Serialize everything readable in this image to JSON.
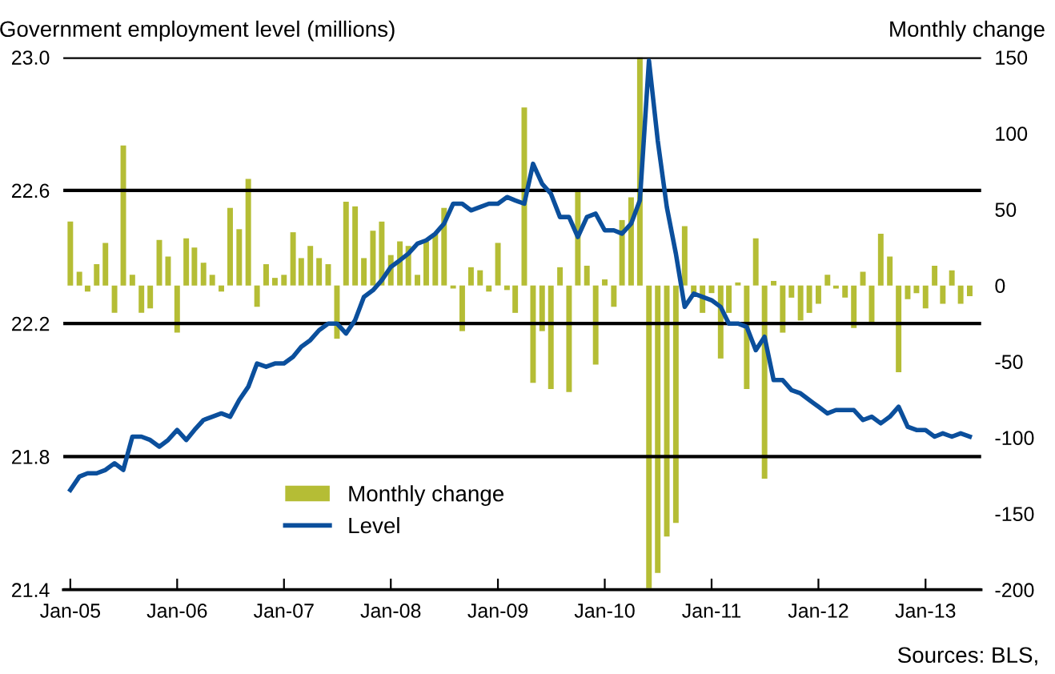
{
  "chart_data": {
    "type": "line",
    "ylabel": "Government employment level (millions)",
    "y2label": "Monthly change",
    "annotations": [
      "Sources: BLS,"
    ],
    "x": [
      "2005-01",
      "2005-02",
      "2005-03",
      "2005-04",
      "2005-05",
      "2005-06",
      "2005-07",
      "2005-08",
      "2005-09",
      "2005-10",
      "2005-11",
      "2005-12",
      "2006-01",
      "2006-02",
      "2006-03",
      "2006-04",
      "2006-05",
      "2006-06",
      "2006-07",
      "2006-08",
      "2006-09",
      "2006-10",
      "2006-11",
      "2006-12",
      "2007-01",
      "2007-02",
      "2007-03",
      "2007-04",
      "2007-05",
      "2007-06",
      "2007-07",
      "2007-08",
      "2007-09",
      "2007-10",
      "2007-11",
      "2007-12",
      "2008-01",
      "2008-02",
      "2008-03",
      "2008-04",
      "2008-05",
      "2008-06",
      "2008-07",
      "2008-08",
      "2008-09",
      "2008-10",
      "2008-11",
      "2008-12",
      "2009-01",
      "2009-02",
      "2009-03",
      "2009-04",
      "2009-05",
      "2009-06",
      "2009-07",
      "2009-08",
      "2009-09",
      "2009-10",
      "2009-11",
      "2009-12",
      "2010-01",
      "2010-02",
      "2010-03",
      "2010-04",
      "2010-05",
      "2010-06",
      "2010-07",
      "2010-08",
      "2010-09",
      "2010-10",
      "2010-11",
      "2010-12",
      "2011-01",
      "2011-02",
      "2011-03",
      "2011-04",
      "2011-05",
      "2011-06",
      "2011-07",
      "2011-08",
      "2011-09",
      "2011-10",
      "2011-11",
      "2011-12",
      "2012-01",
      "2012-02",
      "2012-03",
      "2012-04",
      "2012-05",
      "2012-06",
      "2012-07",
      "2012-08",
      "2012-09",
      "2012-10",
      "2012-11",
      "2012-12",
      "2013-01",
      "2013-02",
      "2013-03",
      "2013-04",
      "2013-05",
      "2013-06"
    ],
    "series": [
      {
        "name": "Monthly change",
        "type": "bar",
        "axis": "y2",
        "color": "#b5bd35",
        "values": [
          42,
          9,
          -4,
          14,
          28,
          -18,
          92,
          7,
          -18,
          -15,
          30,
          19,
          -31,
          31,
          25,
          15,
          7,
          -4,
          51,
          37,
          70,
          -14,
          14,
          5,
          7,
          35,
          18,
          26,
          18,
          14,
          -35,
          55,
          52,
          18,
          36,
          42,
          20,
          29,
          26,
          7,
          29,
          34,
          51,
          -2,
          -30,
          12,
          10,
          -4,
          28,
          -3,
          -18,
          117,
          -64,
          -30,
          -68,
          12,
          -70,
          63,
          13,
          -52,
          4,
          -14,
          43,
          58,
          150,
          -199,
          -189,
          -165,
          -156,
          39,
          -5,
          -18,
          -5,
          -48,
          -18,
          2,
          -68,
          31,
          -127,
          3,
          -31,
          -8,
          -23,
          -18,
          -12,
          7,
          -2,
          -8,
          -28,
          9,
          -24,
          34,
          19,
          -57,
          -9,
          -5,
          -15,
          13,
          -12,
          10,
          -12,
          -7
        ]
      },
      {
        "name": "Level",
        "axis": "y",
        "color": "#0b4f9c",
        "values": [
          21.7,
          21.74,
          21.75,
          21.75,
          21.76,
          21.78,
          21.76,
          21.86,
          21.86,
          21.85,
          21.83,
          21.85,
          21.88,
          21.85,
          21.88,
          21.91,
          21.92,
          21.93,
          21.92,
          21.97,
          22.01,
          22.08,
          22.07,
          22.08,
          22.08,
          22.1,
          22.13,
          22.15,
          22.18,
          22.2,
          22.2,
          22.17,
          22.21,
          22.28,
          22.3,
          22.33,
          22.37,
          22.39,
          22.41,
          22.44,
          22.45,
          22.47,
          22.5,
          22.56,
          22.56,
          22.54,
          22.55,
          22.56,
          22.56,
          22.58,
          22.57,
          22.56,
          22.68,
          22.62,
          22.59,
          22.52,
          22.52,
          22.46,
          22.52,
          22.53,
          22.48,
          22.48,
          22.47,
          22.5,
          22.57,
          22.99,
          22.75,
          22.55,
          22.41,
          22.25,
          22.29,
          22.28,
          22.27,
          22.25,
          22.2,
          22.2,
          22.19,
          22.12,
          22.16,
          22.03,
          22.03,
          22.0,
          21.99,
          21.97,
          21.95,
          21.93,
          21.94,
          21.94,
          21.94,
          21.91,
          21.92,
          21.9,
          21.92,
          21.95,
          21.89,
          21.88,
          21.88,
          21.86,
          21.87,
          21.86,
          21.87,
          21.86
        ]
      }
    ],
    "xlim": [
      "2004-12-08",
      "2013-07-10"
    ],
    "xticks": [
      {
        "value": "2005-01",
        "label": "Jan-05"
      },
      {
        "value": "2006-01",
        "label": "Jan-06"
      },
      {
        "value": "2007-01",
        "label": "Jan-07"
      },
      {
        "value": "2008-01",
        "label": "Jan-08"
      },
      {
        "value": "2009-01",
        "label": "Jan-09"
      },
      {
        "value": "2010-01",
        "label": "Jan-10"
      },
      {
        "value": "2011-01",
        "label": "Jan-11"
      },
      {
        "value": "2012-01",
        "label": "Jan-12"
      },
      {
        "value": "2013-01",
        "label": "Jan-13"
      }
    ],
    "ylim": [
      21.4,
      23.0
    ],
    "yticks": [
      {
        "value": 21.4,
        "label": "21.4"
      },
      {
        "value": 21.8,
        "label": "21.8"
      },
      {
        "value": 22.2,
        "label": "22.2"
      },
      {
        "value": 22.6,
        "label": "22.6"
      },
      {
        "value": 23.0,
        "label": "23.0"
      }
    ],
    "y2lim": [
      -200,
      150
    ],
    "y2ticks": [
      -200,
      -150,
      -100,
      -50,
      0,
      50,
      100,
      150
    ],
    "grid": "y",
    "legend": "bottom left",
    "marker": "none",
    "line_style": "solid"
  }
}
